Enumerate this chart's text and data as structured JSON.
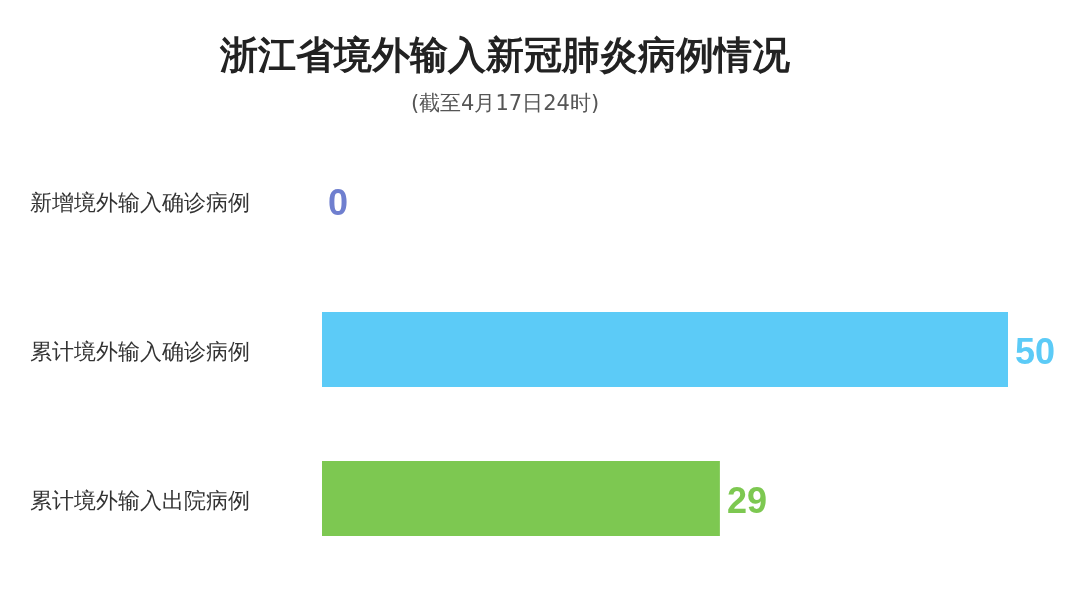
{
  "chart_data": {
    "type": "bar",
    "orientation": "horizontal",
    "title": "浙江省境外输入新冠肺炎病例情况",
    "subtitle": "(截至4月17日24时)",
    "categories": [
      "新增境外输入确诊病例",
      "累计境外输入确诊病例",
      "累计境外输入出院病例"
    ],
    "values": [
      0,
      50,
      29
    ],
    "colors": [
      "#6f7fcf",
      "#5ccbf7",
      "#7dc851"
    ],
    "data_labels": true
  }
}
